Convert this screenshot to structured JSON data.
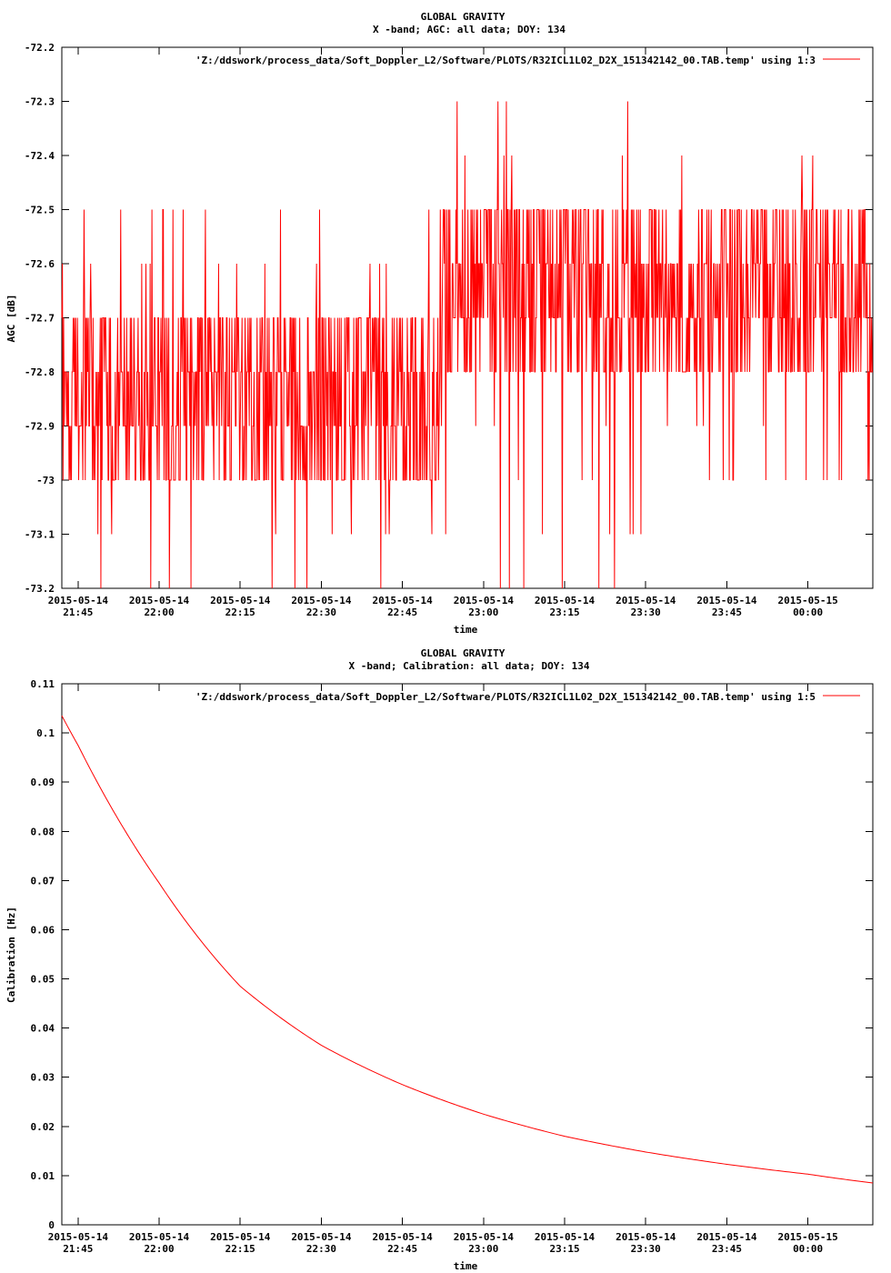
{
  "chart_data": [
    {
      "type": "line",
      "title": "GLOBAL GRAVITY",
      "subtitle": "X -band; AGC: all data; DOY: 134",
      "xlabel": "time",
      "ylabel": "AGC [dB]",
      "ylim": [
        -73.2,
        -72.2
      ],
      "yticks": [
        "-72.2",
        "-72.3",
        "-72.4",
        "-72.5",
        "-72.6",
        "-72.7",
        "-72.8",
        "-72.9",
        "-73",
        "-73.1",
        "-73.2"
      ],
      "xtick_labels": [
        [
          "2015-05-14",
          "21:45"
        ],
        [
          "2015-05-14",
          "22:00"
        ],
        [
          "2015-05-14",
          "22:15"
        ],
        [
          "2015-05-14",
          "22:30"
        ],
        [
          "2015-05-14",
          "22:45"
        ],
        [
          "2015-05-14",
          "23:00"
        ],
        [
          "2015-05-14",
          "23:15"
        ],
        [
          "2015-05-14",
          "23:30"
        ],
        [
          "2015-05-14",
          "23:45"
        ],
        [
          "2015-05-15",
          "00:00"
        ]
      ],
      "xrange": [
        "2015-05-14 21:42",
        "2015-05-15 00:12"
      ],
      "grid": false,
      "legend_position": "top-right",
      "series": [
        {
          "name": "'Z:/ddswork/process_data/Soft_Doppler_L2/Software/PLOTS/R32ICL1L02_D2X_151342142_00.TAB.temp' using 1:3",
          "color": "#ff0000",
          "x_start": "2015-05-14 21:42",
          "x_end": "2015-05-15 00:12",
          "description": "noisy AGC signal alternating between discrete 0.1 dB levels",
          "segments": [
            {
              "from": "21:42",
              "to": "22:52",
              "low": -73.2,
              "high": -72.5,
              "typical": [
                -72.8,
                -72.9,
                -72.7,
                -73.0
              ]
            },
            {
              "from": "22:52",
              "to": "23:35",
              "low": -73.2,
              "high": -72.3,
              "typical": [
                -72.6,
                -72.7,
                -72.8,
                -72.5
              ]
            },
            {
              "from": "23:35",
              "to": "00:12",
              "low": -73.0,
              "high": -72.4,
              "typical": [
                -72.6,
                -72.7,
                -72.8,
                -72.5
              ]
            }
          ]
        }
      ]
    },
    {
      "type": "line",
      "title": "GLOBAL GRAVITY",
      "subtitle": "X -band; Calibration: all data; DOY: 134",
      "xlabel": "time",
      "ylabel": "Calibration [Hz]",
      "ylim": [
        0,
        0.11
      ],
      "yticks": [
        "0.11",
        "0.1",
        "0.09",
        "0.08",
        "0.07",
        "0.06",
        "0.05",
        "0.04",
        "0.03",
        "0.02",
        "0.01",
        "0"
      ],
      "xtick_labels": [
        [
          "2015-05-14",
          "21:45"
        ],
        [
          "2015-05-14",
          "22:00"
        ],
        [
          "2015-05-14",
          "22:15"
        ],
        [
          "2015-05-14",
          "22:30"
        ],
        [
          "2015-05-14",
          "22:45"
        ],
        [
          "2015-05-14",
          "23:00"
        ],
        [
          "2015-05-14",
          "23:15"
        ],
        [
          "2015-05-14",
          "23:30"
        ],
        [
          "2015-05-14",
          "23:45"
        ],
        [
          "2015-05-15",
          "00:00"
        ]
      ],
      "xrange": [
        "2015-05-14 21:42",
        "2015-05-15 00:12"
      ],
      "grid": false,
      "legend_position": "top-right",
      "series": [
        {
          "name": "'Z:/ddswork/process_data/Soft_Doppler_L2/Software/PLOTS/R32ICL1L02_D2X_151342142_00.TAB.temp' using 1:5",
          "color": "#ff0000",
          "x": [
            "21:42",
            "21:45",
            "22:00",
            "22:15",
            "22:30",
            "22:45",
            "23:00",
            "23:15",
            "23:30",
            "23:45",
            "00:00",
            "00:12"
          ],
          "y": [
            0.1035,
            0.0975,
            0.0695,
            0.0485,
            0.0365,
            0.0285,
            0.0225,
            0.018,
            0.0148,
            0.0123,
            0.0103,
            0.0085
          ]
        }
      ]
    }
  ]
}
